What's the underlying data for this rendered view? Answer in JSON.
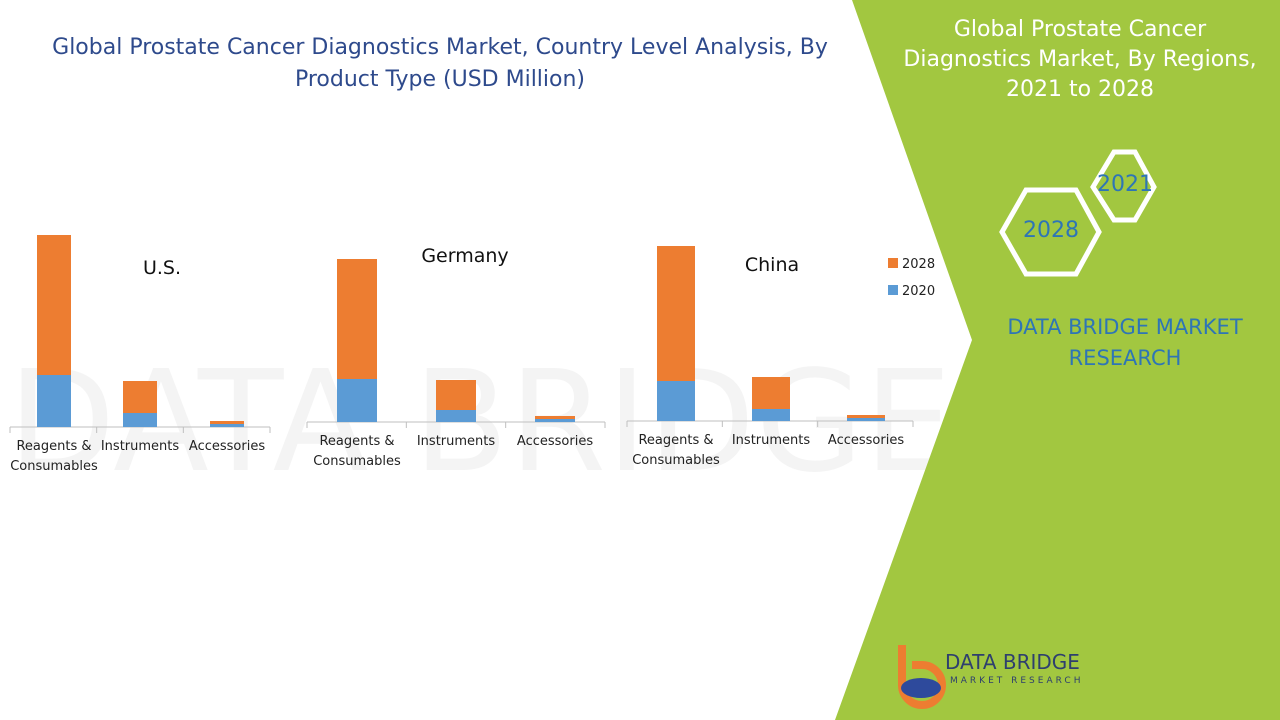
{
  "header": {
    "title": "Global Prostate Cancer Diagnostics Market, Country Level Analysis, By Product Type (USD Million)"
  },
  "sidebar": {
    "title": "Global Prostate Cancer Diagnostics Market, By Regions, 2021 to 2028",
    "hex_top": "2021",
    "hex_bottom": "2028",
    "brand": "DATA BRIDGE MARKET RESEARCH",
    "logo_main": "DATA BRIDGE",
    "logo_sub": "MARKET RESEARCH"
  },
  "chart_data": [
    {
      "type": "bar",
      "stacked": true,
      "title": "U.S.",
      "categories": [
        "Reagents & Consumables",
        "Instruments",
        "Accessories"
      ],
      "series": [
        {
          "name": "2020",
          "color": "#5b9bd5",
          "values": [
            52,
            14,
            3
          ]
        },
        {
          "name": "2028",
          "color": "#ed7d31",
          "values": [
            140,
            32,
            3
          ]
        }
      ]
    },
    {
      "type": "bar",
      "stacked": true,
      "title": "Germany",
      "categories": [
        "Reagents & Consumables",
        "Instruments",
        "Accessories"
      ],
      "series": [
        {
          "name": "2020",
          "color": "#5b9bd5",
          "values": [
            43,
            12,
            3
          ]
        },
        {
          "name": "2028",
          "color": "#ed7d31",
          "values": [
            120,
            30,
            3
          ]
        }
      ]
    },
    {
      "type": "bar",
      "stacked": true,
      "title": "China",
      "categories": [
        "Reagents & Consumables",
        "Instruments",
        "Accessories"
      ],
      "legend": "right",
      "series": [
        {
          "name": "2020",
          "color": "#5b9bd5",
          "values": [
            40,
            12,
            3
          ]
        },
        {
          "name": "2028",
          "color": "#ed7d31",
          "values": [
            135,
            32,
            3
          ]
        }
      ]
    }
  ]
}
